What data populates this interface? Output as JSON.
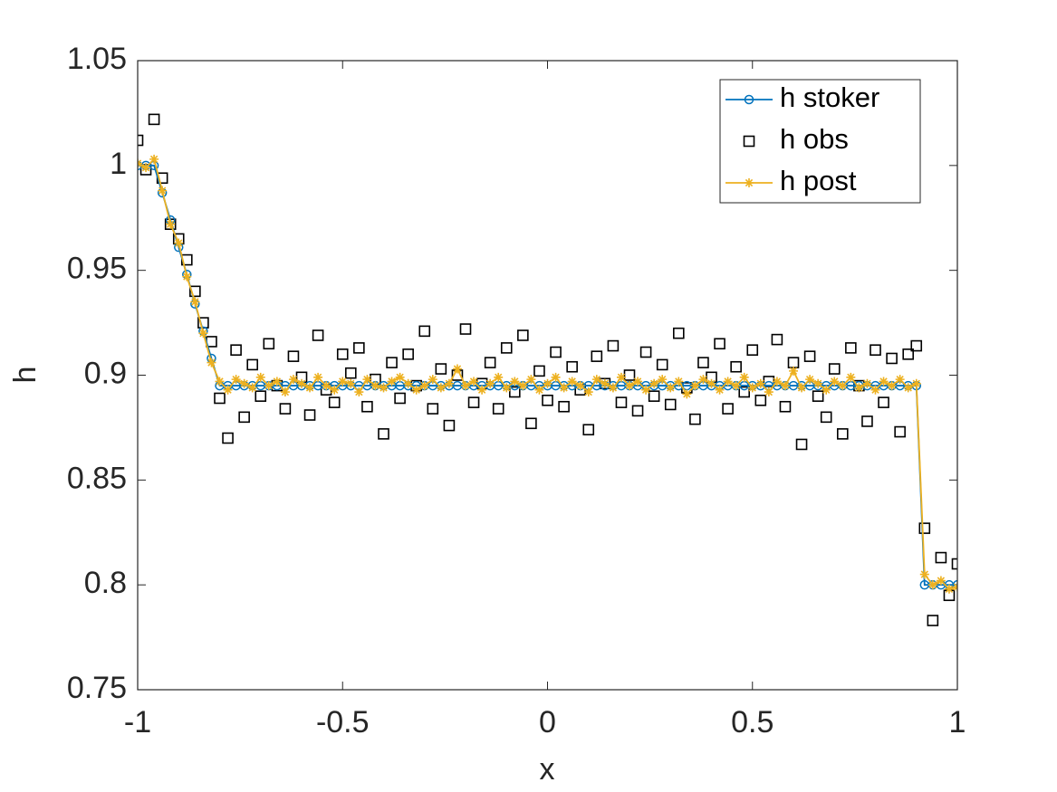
{
  "chart_data": {
    "type": "line",
    "xlabel": "x",
    "ylabel": "h",
    "xlim": [
      -1,
      1
    ],
    "ylim": [
      0.75,
      1.05
    ],
    "xticks": [
      -1,
      -0.5,
      0,
      0.5,
      1
    ],
    "yticks": [
      0.75,
      0.8,
      0.85,
      0.9,
      0.95,
      1,
      1.05
    ],
    "grid": false,
    "legend": "upper right",
    "x": [
      -1,
      -0.98,
      -0.96,
      -0.94,
      -0.92,
      -0.9,
      -0.88,
      -0.86,
      -0.84,
      -0.82,
      -0.8,
      -0.78,
      -0.76,
      -0.74,
      -0.72,
      -0.7,
      -0.68,
      -0.66,
      -0.64,
      -0.62,
      -0.6,
      -0.58,
      -0.56,
      -0.54,
      -0.52,
      -0.5,
      -0.48,
      -0.46,
      -0.44,
      -0.42,
      -0.4,
      -0.38,
      -0.36,
      -0.34,
      -0.32,
      -0.3,
      -0.28,
      -0.26,
      -0.24,
      -0.22,
      -0.2,
      -0.18,
      -0.16,
      -0.14,
      -0.12,
      -0.1,
      -0.08,
      -0.06,
      -0.04,
      -0.02,
      0,
      0.02,
      0.04,
      0.06,
      0.08,
      0.1,
      0.12,
      0.14,
      0.16,
      0.18,
      0.2,
      0.22,
      0.24,
      0.26,
      0.28,
      0.3,
      0.32,
      0.34,
      0.36,
      0.38,
      0.4,
      0.42,
      0.44,
      0.46,
      0.48,
      0.5,
      0.52,
      0.54,
      0.56,
      0.58,
      0.6,
      0.62,
      0.64,
      0.66,
      0.68,
      0.7,
      0.72,
      0.74,
      0.76,
      0.78,
      0.8,
      0.82,
      0.84,
      0.86,
      0.88,
      0.9,
      0.92,
      0.94,
      0.96,
      0.98,
      1
    ],
    "series": [
      {
        "name": "h stoker",
        "color": "#0072bd",
        "marker": "circle",
        "line": true,
        "values": [
          1,
          1,
          1,
          0.987,
          0.974,
          0.961,
          0.948,
          0.934,
          0.921,
          0.908,
          0.895,
          0.895,
          0.895,
          0.895,
          0.895,
          0.895,
          0.895,
          0.895,
          0.895,
          0.895,
          0.895,
          0.895,
          0.895,
          0.895,
          0.895,
          0.895,
          0.895,
          0.895,
          0.895,
          0.895,
          0.895,
          0.895,
          0.895,
          0.895,
          0.895,
          0.895,
          0.895,
          0.895,
          0.895,
          0.895,
          0.895,
          0.895,
          0.895,
          0.895,
          0.895,
          0.895,
          0.895,
          0.895,
          0.895,
          0.895,
          0.895,
          0.895,
          0.895,
          0.895,
          0.895,
          0.895,
          0.895,
          0.895,
          0.895,
          0.895,
          0.895,
          0.895,
          0.895,
          0.895,
          0.895,
          0.895,
          0.895,
          0.895,
          0.895,
          0.895,
          0.895,
          0.895,
          0.895,
          0.895,
          0.895,
          0.895,
          0.895,
          0.895,
          0.895,
          0.895,
          0.895,
          0.895,
          0.895,
          0.895,
          0.895,
          0.895,
          0.895,
          0.895,
          0.895,
          0.895,
          0.895,
          0.895,
          0.895,
          0.895,
          0.895,
          0.895,
          0.8,
          0.8,
          0.8,
          0.8,
          0.8
        ]
      },
      {
        "name": "h obs",
        "color": "#000000",
        "marker": "square",
        "line": false,
        "values": [
          1.012,
          0.998,
          1.022,
          0.994,
          0.972,
          0.965,
          0.955,
          0.94,
          0.925,
          0.916,
          0.889,
          0.87,
          0.912,
          0.88,
          0.905,
          0.89,
          0.915,
          0.895,
          0.884,
          0.909,
          0.899,
          0.881,
          0.919,
          0.893,
          0.887,
          0.91,
          0.901,
          0.913,
          0.885,
          0.898,
          0.872,
          0.906,
          0.889,
          0.91,
          0.895,
          0.921,
          0.884,
          0.903,
          0.876,
          0.9,
          0.922,
          0.887,
          0.896,
          0.906,
          0.884,
          0.913,
          0.892,
          0.919,
          0.877,
          0.902,
          0.888,
          0.911,
          0.885,
          0.904,
          0.893,
          0.874,
          0.909,
          0.896,
          0.914,
          0.887,
          0.9,
          0.883,
          0.911,
          0.89,
          0.905,
          0.886,
          0.92,
          0.894,
          0.879,
          0.906,
          0.899,
          0.915,
          0.884,
          0.904,
          0.892,
          0.912,
          0.888,
          0.897,
          0.917,
          0.885,
          0.906,
          0.867,
          0.909,
          0.89,
          0.88,
          0.903,
          0.872,
          0.913,
          0.895,
          0.878,
          0.912,
          0.887,
          0.908,
          0.873,
          0.91,
          0.914,
          0.827,
          0.783,
          0.813,
          0.795,
          0.81
        ]
      },
      {
        "name": "h post",
        "color": "#edb120",
        "marker": "star",
        "line": true,
        "values": [
          1.001,
          0.999,
          1.003,
          0.988,
          0.972,
          0.963,
          0.947,
          0.935,
          0.92,
          0.906,
          0.897,
          0.893,
          0.898,
          0.896,
          0.894,
          0.899,
          0.895,
          0.897,
          0.892,
          0.898,
          0.896,
          0.894,
          0.899,
          0.895,
          0.893,
          0.897,
          0.896,
          0.892,
          0.898,
          0.895,
          0.894,
          0.897,
          0.899,
          0.896,
          0.893,
          0.895,
          0.898,
          0.894,
          0.896,
          0.903,
          0.895,
          0.897,
          0.893,
          0.896,
          0.899,
          0.894,
          0.897,
          0.895,
          0.898,
          0.893,
          0.896,
          0.899,
          0.894,
          0.897,
          0.895,
          0.892,
          0.898,
          0.896,
          0.894,
          0.899,
          0.895,
          0.897,
          0.893,
          0.896,
          0.898,
          0.894,
          0.897,
          0.891,
          0.895,
          0.898,
          0.896,
          0.893,
          0.897,
          0.895,
          0.899,
          0.894,
          0.896,
          0.892,
          0.897,
          0.895,
          0.902,
          0.894,
          0.898,
          0.896,
          0.893,
          0.897,
          0.895,
          0.899,
          0.894,
          0.896,
          0.893,
          0.897,
          0.895,
          0.898,
          0.894,
          0.896,
          0.805,
          0.8,
          0.802,
          0.798,
          0.799
        ]
      }
    ]
  }
}
